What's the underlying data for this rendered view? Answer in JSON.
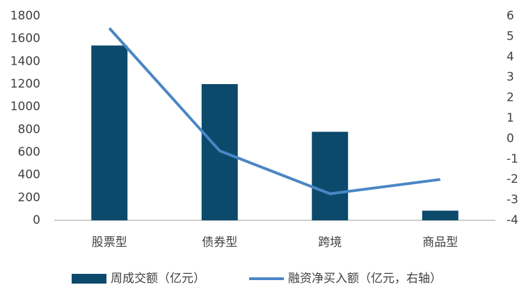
{
  "chart_data": {
    "type": "bar_line",
    "categories": [
      "股票型",
      "债券型",
      "跨境",
      "商品型"
    ],
    "series": [
      {
        "name": "周成交额（亿元）",
        "type": "bar",
        "color": "#0c4a6c",
        "values": [
          1540,
          1200,
          780,
          85
        ]
      },
      {
        "name": "融资净买入额（亿元，右轴）",
        "type": "line",
        "axis": "y2",
        "color": "#4a86c5",
        "values": [
          5.4,
          -0.6,
          -2.7,
          -2.0
        ]
      }
    ],
    "ylim": [
      0,
      1800
    ],
    "yticks": [
      0,
      200,
      400,
      600,
      800,
      1000,
      1200,
      1400,
      1600,
      1800
    ],
    "y2lim": [
      -4,
      6
    ],
    "y2ticks": [
      -4,
      -3,
      -2,
      -1,
      0,
      1,
      2,
      3,
      4,
      5,
      6
    ],
    "grid": false,
    "legend": "bottom"
  }
}
